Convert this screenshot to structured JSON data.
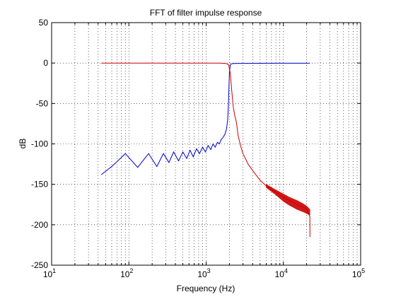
{
  "chart_data": {
    "type": "line",
    "title": "FFT of filter impulse response",
    "xlabel": "Frequency (Hz)",
    "ylabel": "dB",
    "xscale": "log",
    "xlim": [
      10,
      100000
    ],
    "ylim": [
      -250,
      50
    ],
    "x_ticks": [
      {
        "value": 10,
        "base": "10",
        "exp": "1"
      },
      {
        "value": 100,
        "base": "10",
        "exp": "2"
      },
      {
        "value": 1000,
        "base": "10",
        "exp": "3"
      },
      {
        "value": 10000,
        "base": "10",
        "exp": "4"
      },
      {
        "value": 100000,
        "base": "10",
        "exp": "5"
      }
    ],
    "y_ticks": [
      50,
      0,
      -50,
      -100,
      -150,
      -200,
      -250
    ],
    "grid": true,
    "series": [
      {
        "color": "#0000cc",
        "x": [
          44,
          60,
          90,
          130,
          180,
          230,
          280,
          330,
          380,
          440,
          500,
          560,
          620,
          680,
          750,
          820,
          900,
          980,
          1060,
          1150,
          1230,
          1310,
          1400,
          1480,
          1560,
          1650,
          1750,
          1830,
          1900,
          1950,
          2000,
          2050,
          2100,
          2300,
          3000,
          5000,
          8000,
          12000,
          22050
        ],
        "y": [
          -138,
          -128,
          -112,
          -129,
          -112,
          -128,
          -112,
          -123,
          -110,
          -121,
          -110,
          -118,
          -108,
          -116,
          -106,
          -112,
          -104,
          -110,
          -102,
          -107,
          -100,
          -104,
          -98,
          -100,
          -95,
          -92,
          -88,
          -82,
          -70,
          -48,
          -12,
          -3,
          -1,
          -0.5,
          -0.4,
          -0.3,
          -0.2,
          -0.2,
          -0.2
        ],
        "band": {
          "x": [],
          "upper": [],
          "lower": []
        }
      },
      {
        "color": "#cc0000",
        "x": [
          44,
          100,
          200,
          500,
          1000,
          1500,
          1800,
          1950,
          2050,
          2150,
          2250,
          2350,
          2450,
          2500,
          2600,
          2800,
          3000,
          3500,
          4000,
          5000,
          6000,
          8000,
          10000,
          12000,
          15000,
          18000,
          20000,
          22000,
          22050
        ],
        "y": [
          0,
          0,
          0,
          0,
          0,
          0,
          -0.5,
          -2,
          -12,
          -35,
          -55,
          -65,
          -72,
          -78,
          -90,
          -103,
          -112,
          -125,
          -133,
          -145,
          -152,
          -160,
          -166,
          -170,
          -175,
          -178,
          -181,
          -190,
          -215
        ],
        "band": {
          "x": [
            6000,
            8000,
            10000,
            12000,
            15000,
            18000,
            20000,
            22000
          ],
          "upper": [
            -150,
            -157,
            -162,
            -166,
            -170,
            -174,
            -177,
            -181
          ],
          "lower": [
            -154,
            -163,
            -171,
            -176,
            -181,
            -184,
            -186,
            -188
          ]
        }
      }
    ]
  }
}
